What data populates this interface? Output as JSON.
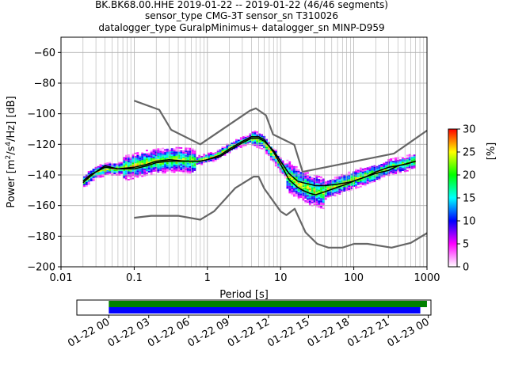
{
  "chart_data": {
    "type": "heatmap",
    "title_lines": [
      "BK.BK68.00.HHE   2019-01-22 -- 2019-01-22  (46/46 segments)",
      "sensor_type CMG-3T sensor_sn T310026",
      "datalogger_type GuralpMinimus+ datalogger_sn MINP-D959"
    ],
    "xlabel": "Period [s]",
    "ylabel": "Power [m²/s⁴/Hz] [dB]",
    "ylabel_parts": {
      "main": "Power [m",
      "sup1": "2",
      "mid": "/s",
      "sup2": "4",
      "end": "/Hz] [dB]"
    },
    "xscale": "log",
    "xlim": [
      0.01,
      1000
    ],
    "ylim": [
      -200,
      -50
    ],
    "x_ticks": [
      0.01,
      0.1,
      1,
      10,
      100,
      1000
    ],
    "x_tick_labels": [
      "0.01",
      "0.1",
      "1",
      "10",
      "100",
      "1000"
    ],
    "y_ticks": [
      -200,
      -180,
      -160,
      -140,
      -120,
      -100,
      -80,
      -60
    ],
    "y_tick_labels": [
      "−200",
      "−180",
      "−160",
      "−140",
      "−120",
      "−100",
      "−80",
      "−60"
    ],
    "grid": true,
    "colorbar": {
      "label": "[%]",
      "range": [
        0,
        30
      ],
      "ticks": [
        0,
        5,
        10,
        15,
        20,
        25,
        30
      ],
      "tick_labels": [
        "0",
        "5",
        "10",
        "15",
        "20",
        "25",
        "30"
      ],
      "colors": [
        "#ffffff",
        "#ff00ff",
        "#0000ff",
        "#00ffff",
        "#00ff00",
        "#ffff00",
        "#ff0000"
      ]
    },
    "series": [
      {
        "role": "new high noise model",
        "color": "#666666",
        "x": [
          0.1,
          0.22,
          0.32,
          0.8,
          3.8,
          4.6,
          6.3,
          7.9,
          15.4,
          20,
          354.8,
          1000
        ],
        "y": [
          -91.5,
          -97.4,
          -110.5,
          -120,
          -98,
          -96.5,
          -101,
          -113.5,
          -120.3,
          -138,
          -126,
          -111
        ]
      },
      {
        "role": "new low noise model",
        "color": "#666666",
        "x": [
          0.1,
          0.17,
          0.4,
          0.8,
          1.24,
          2.4,
          4.3,
          5,
          6,
          10,
          12,
          15.6,
          21.9,
          31.6,
          45,
          70,
          101,
          154,
          328,
          600,
          1000
        ],
        "y": [
          -168,
          -166.7,
          -166.7,
          -169.2,
          -163.7,
          -148.6,
          -141.1,
          -141.1,
          -149,
          -163.8,
          -166.2,
          -162.1,
          -177.5,
          -185,
          -187.5,
          -187.5,
          -185,
          -185,
          -187.5,
          -184.4,
          -178
        ]
      },
      {
        "role": "mean",
        "color": "#000000",
        "x": [
          0.02,
          0.025,
          0.03,
          0.04,
          0.06,
          0.1,
          0.15,
          0.2,
          0.3,
          0.5,
          0.8,
          1,
          1.5,
          2,
          3,
          4,
          5,
          6,
          8,
          10,
          13,
          17,
          20,
          25,
          30,
          40,
          60,
          80,
          100,
          150,
          200,
          300,
          400,
          500,
          700
        ],
        "y": [
          -144,
          -140,
          -138,
          -134,
          -136,
          -135,
          -133,
          -131,
          -130,
          -131,
          -131,
          -130,
          -128,
          -124,
          -119,
          -116,
          -116,
          -118,
          -124,
          -131,
          -139,
          -144,
          -145,
          -146,
          -147,
          -147,
          -146,
          -145,
          -144,
          -141,
          -139,
          -137,
          -134,
          -133,
          -131
        ]
      },
      {
        "role": "mode",
        "color": "#000000",
        "x": [
          0.02,
          0.025,
          0.03,
          0.04,
          0.06,
          0.1,
          0.15,
          0.2,
          0.3,
          0.5,
          0.8,
          1,
          1.5,
          2,
          3,
          4,
          5,
          6,
          8,
          10,
          13,
          17,
          20,
          25,
          30,
          40,
          60,
          80,
          100,
          150,
          200,
          300,
          400,
          500,
          700
        ],
        "y": [
          -145,
          -141,
          -138,
          -135,
          -136,
          -136,
          -134,
          -132,
          -131,
          -131,
          -131,
          -130,
          -127,
          -123,
          -118,
          -115,
          -115,
          -117,
          -125,
          -133,
          -143,
          -148,
          -150,
          -152,
          -153,
          -151,
          -148,
          -146,
          -144,
          -141,
          -138,
          -135,
          -134,
          -133,
          -131
        ]
      }
    ],
    "heatmap_bands": [
      {
        "pmin": 0.02,
        "pmax": 0.07,
        "center": [
          -145,
          -138,
          -136,
          -136
        ],
        "spread": 4
      },
      {
        "pmin": 0.07,
        "pmax": 0.7,
        "center": [
          -136,
          -132,
          -130,
          -131
        ],
        "spread": 8
      },
      {
        "pmin": 0.7,
        "pmax": 4,
        "center": [
          -131,
          -128,
          -121,
          -116
        ],
        "spread": 3
      },
      {
        "pmin": 4,
        "pmax": 12,
        "center": [
          -116,
          -118,
          -128,
          -138
        ],
        "spread": 5
      },
      {
        "pmin": 12,
        "pmax": 40,
        "center": [
          -140,
          -146,
          -150,
          -152
        ],
        "spread": 10
      },
      {
        "pmin": 40,
        "pmax": 200,
        "center": [
          -150,
          -146,
          -142,
          -139
        ],
        "spread": 6
      },
      {
        "pmin": 200,
        "pmax": 700,
        "center": [
          -139,
          -135,
          -133,
          -131
        ],
        "spread": 5
      }
    ],
    "timeline": {
      "tick_labels": [
        "01-22 00",
        "01-22 03",
        "01-22 06",
        "01-22 09",
        "01-22 12",
        "01-22 15",
        "01-22 18",
        "01-22 21",
        "01-23 00"
      ],
      "hour_span": [
        -2.4,
        24.2
      ],
      "bars": [
        {
          "name": "data coverage",
          "color": "#008000",
          "start_hour": 0,
          "end_hour": 23.9
        },
        {
          "name": "PSD coverage",
          "color": "#0000ff",
          "start_hour": 0,
          "end_hour": 23.4
        }
      ]
    }
  }
}
